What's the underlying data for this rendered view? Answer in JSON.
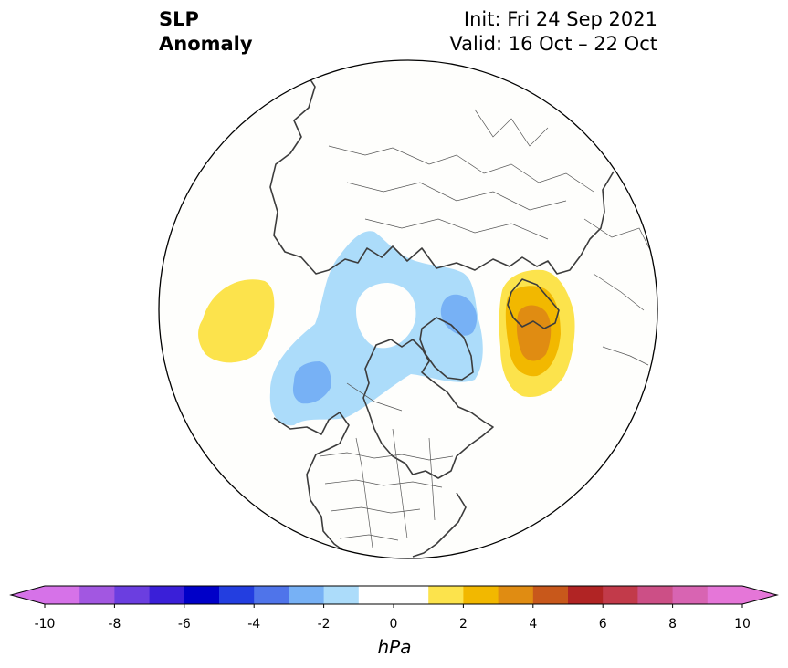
{
  "title": {
    "left_line1": "SLP",
    "left_line2": "Anomaly",
    "right_line1": "Init: Fri 24 Sep 2021",
    "right_line2": "Valid: 16 Oct – 22 Oct"
  },
  "colorbar": {
    "unit": "hPa",
    "extend": "both",
    "levels": [
      -10,
      -9,
      -8,
      -7,
      -6,
      -5,
      -4,
      -3,
      -2,
      -1,
      1,
      2,
      3,
      4,
      5,
      6,
      7,
      8,
      9,
      10
    ],
    "ticks": [
      "-10",
      "-8",
      "-6",
      "-4",
      "-2",
      "0",
      "2",
      "4",
      "6",
      "8",
      "10"
    ],
    "colors": [
      "#d672e8",
      "#a257e1",
      "#6b3ee0",
      "#3a1fd8",
      "#0000c8",
      "#233ee0",
      "#4f74ea",
      "#77b1f5",
      "#acdcfa",
      "#ffffff",
      "#ffffff",
      "#fce34c",
      "#f2b800",
      "#e08c12",
      "#c8581b",
      "#b12424",
      "#c23a4a",
      "#cc4f86",
      "#d864b2",
      "#e576d8"
    ],
    "under_color": "#d672e8",
    "over_color": "#e576d8"
  },
  "map": {
    "projection": "north-polar-stereographic",
    "region": "Northern Hemisphere"
  },
  "anomaly_regions": [
    {
      "name": "north-pacific-positive",
      "level": 1
    },
    {
      "name": "arctic-negative",
      "level": -1
    },
    {
      "name": "alaska-negative-core",
      "level": -2
    },
    {
      "name": "greenland-negative-core",
      "level": -2
    },
    {
      "name": "western-russia-positive",
      "level": 1
    },
    {
      "name": "western-russia-positive-inner",
      "level": 2
    },
    {
      "name": "western-russia-positive-core",
      "level": 3
    }
  ]
}
